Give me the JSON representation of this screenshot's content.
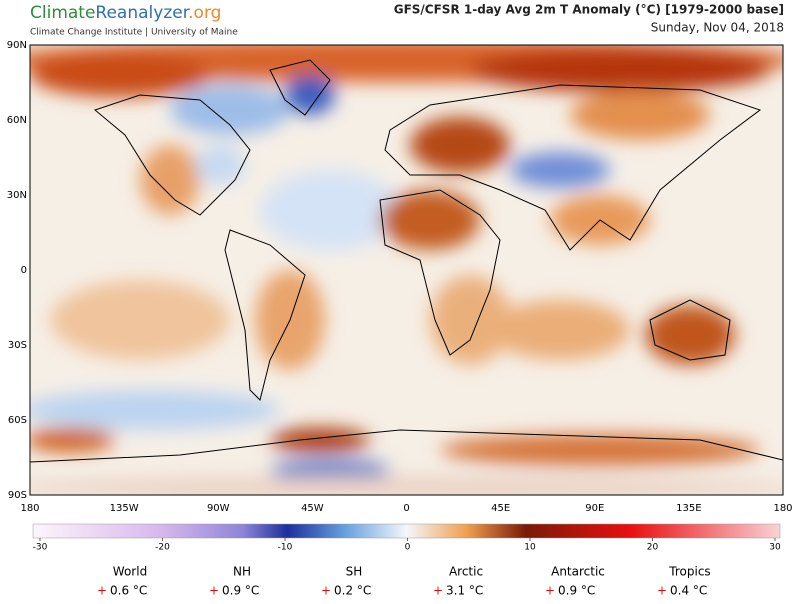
{
  "header": {
    "logo": {
      "part1": "Climate",
      "part2": "Reanalyzer",
      "part3": ".org"
    },
    "subtitle": "Climate Change Institute | University of Maine",
    "title": "GFS/CFSR 1-day Avg 2m T Anomaly (°C) [1979-2000 base]",
    "date": "Sunday, Nov 04, 2018"
  },
  "map": {
    "lat_labels": [
      "90N",
      "60N",
      "30N",
      "0",
      "30S",
      "60S",
      "90S"
    ],
    "lon_labels": [
      "180",
      "135W",
      "90W",
      "45W",
      "0",
      "45E",
      "90E",
      "135E",
      "180"
    ]
  },
  "colorbar": {
    "range": [
      -30,
      30
    ],
    "ticks": [
      -30,
      -20,
      -10,
      0,
      10,
      20,
      30
    ]
  },
  "regions": [
    {
      "name": "World",
      "sign": "+",
      "value": "0.6 °C"
    },
    {
      "name": "NH",
      "sign": "+",
      "value": "0.9 °C"
    },
    {
      "name": "SH",
      "sign": "+",
      "value": "0.2 °C"
    },
    {
      "name": "Arctic",
      "sign": "+",
      "value": "3.1 °C"
    },
    {
      "name": "Antarctic",
      "sign": "+",
      "value": "0.9 °C"
    },
    {
      "name": "Tropics",
      "sign": "+",
      "value": "0.4 °C"
    }
  ]
}
